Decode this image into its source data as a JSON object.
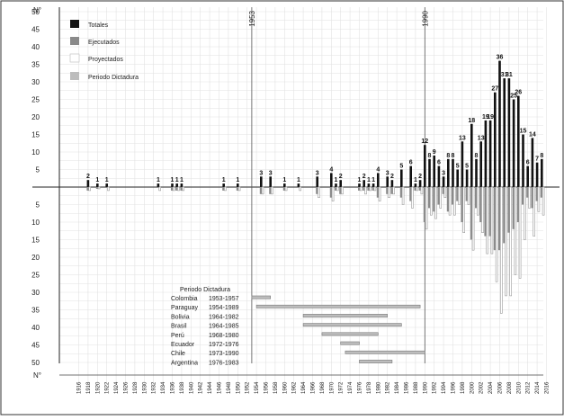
{
  "chart_data": {
    "type": "bar",
    "ylabel_top": "N°",
    "ylabel_bottom": "N°",
    "y_ticks_up": [
      5,
      10,
      15,
      20,
      25,
      30,
      35,
      40,
      45,
      50
    ],
    "y_ticks_down": [
      5,
      10,
      15,
      20,
      25,
      30,
      35,
      40,
      45,
      50
    ],
    "xlim": [
      1916,
      2016
    ],
    "x_tick_labels": [
      "1916",
      "1918",
      "1920",
      "1922",
      "1924",
      "1926",
      "1928",
      "1930",
      "1932",
      "1934",
      "1936",
      "1938",
      "1940",
      "1942",
      "1944",
      "1946",
      "1948",
      "1950",
      "1952",
      "1954",
      "1956",
      "1958",
      "1960",
      "1962",
      "1964",
      "1966",
      "1968",
      "1970",
      "1972",
      "1974",
      "1976",
      "1978",
      "1980",
      "1982",
      "1984",
      "1986",
      "1988",
      "1990",
      "1992",
      "1994",
      "1996",
      "1998",
      "2000",
      "2002",
      "2004",
      "2006",
      "2008",
      "2010",
      "2012",
      "2014",
      "2016"
    ],
    "legend": [
      {
        "name": "Totales",
        "color": "#111111"
      },
      {
        "name": "Ejecutados",
        "color": "#8a8a8a"
      },
      {
        "name": "Proyectados",
        "color": "#ffffff"
      },
      {
        "name": "Periodo Dictadura",
        "color": "#bdbdbd"
      }
    ],
    "annotations": [
      {
        "label": "1953",
        "x": 1953
      },
      {
        "label": "1990",
        "x": 1990
      }
    ],
    "totals": [
      {
        "year": 1918,
        "value": 2,
        "label": "2"
      },
      {
        "year": 1920,
        "value": 1,
        "label": "1"
      },
      {
        "year": 1922,
        "value": 1,
        "label": "1"
      },
      {
        "year": 1933,
        "value": 1,
        "label": "1"
      },
      {
        "year": 1936,
        "value": 1,
        "label": "1"
      },
      {
        "year": 1937,
        "value": 1,
        "label": "1"
      },
      {
        "year": 1938,
        "value": 1,
        "label": "1"
      },
      {
        "year": 1947,
        "value": 1,
        "label": "1"
      },
      {
        "year": 1950,
        "value": 1,
        "label": "1"
      },
      {
        "year": 1955,
        "value": 3,
        "label": "3"
      },
      {
        "year": 1957,
        "value": 3,
        "label": "3"
      },
      {
        "year": 1960,
        "value": 1,
        "label": "1"
      },
      {
        "year": 1963,
        "value": 1,
        "label": "1"
      },
      {
        "year": 1967,
        "value": 3,
        "label": "3"
      },
      {
        "year": 1970,
        "value": 4,
        "label": "4"
      },
      {
        "year": 1971,
        "value": 1,
        "label": "1"
      },
      {
        "year": 1972,
        "value": 2,
        "label": "2"
      },
      {
        "year": 1976,
        "value": 1,
        "label": "1"
      },
      {
        "year": 1977,
        "value": 2,
        "label": "2"
      },
      {
        "year": 1978,
        "value": 1,
        "label": "1"
      },
      {
        "year": 1979,
        "value": 1,
        "label": "1"
      },
      {
        "year": 1980,
        "value": 4,
        "label": "4"
      },
      {
        "year": 1982,
        "value": 3,
        "label": "3"
      },
      {
        "year": 1983,
        "value": 2,
        "label": "2"
      },
      {
        "year": 1985,
        "value": 5,
        "label": "5"
      },
      {
        "year": 1987,
        "value": 6,
        "label": "6"
      },
      {
        "year": 1988,
        "value": 1,
        "label": "1"
      },
      {
        "year": 1989,
        "value": 2,
        "label": "2"
      },
      {
        "year": 1990,
        "value": 12,
        "label": "12"
      },
      {
        "year": 1991,
        "value": 8,
        "label": "8"
      },
      {
        "year": 1992,
        "value": 9,
        "label": "9"
      },
      {
        "year": 1993,
        "value": 6,
        "label": "6"
      },
      {
        "year": 1994,
        "value": 3,
        "label": "3"
      },
      {
        "year": 1995,
        "value": 8,
        "label": "8"
      },
      {
        "year": 1996,
        "value": 8,
        "label": "8"
      },
      {
        "year": 1997,
        "value": 5,
        "label": "5"
      },
      {
        "year": 1998,
        "value": 13,
        "label": "13"
      },
      {
        "year": 1999,
        "value": 5,
        "label": "5"
      },
      {
        "year": 2000,
        "value": 18,
        "label": "18"
      },
      {
        "year": 2001,
        "value": 8,
        "label": "8"
      },
      {
        "year": 2002,
        "value": 13,
        "label": "13"
      },
      {
        "year": 2003,
        "value": 19,
        "label": "19"
      },
      {
        "year": 2004,
        "value": 19,
        "label": "19"
      },
      {
        "year": 2005,
        "value": 27,
        "label": "27"
      },
      {
        "year": 2006,
        "value": 36,
        "label": "36"
      },
      {
        "year": 2007,
        "value": 31,
        "label": "31"
      },
      {
        "year": 2008,
        "value": 31,
        "label": "31"
      },
      {
        "year": 2009,
        "value": 25,
        "label": "25"
      },
      {
        "year": 2010,
        "value": 26,
        "label": "26"
      },
      {
        "year": 2011,
        "value": 15,
        "label": "15"
      },
      {
        "year": 2012,
        "value": 6,
        "label": "6"
      },
      {
        "year": 2013,
        "value": 14,
        "label": "14"
      },
      {
        "year": 2014,
        "value": 7,
        "label": "7"
      },
      {
        "year": 2015,
        "value": 8,
        "label": "8"
      }
    ],
    "below": [
      {
        "year": 1918,
        "exec": 1,
        "proj": 1
      },
      {
        "year": 1920,
        "exec": 0.5,
        "proj": 0.5
      },
      {
        "year": 1922,
        "exec": 0,
        "proj": 1
      },
      {
        "year": 1933,
        "exec": 0,
        "proj": 1
      },
      {
        "year": 1936,
        "exec": 1,
        "proj": 1
      },
      {
        "year": 1937,
        "exec": 1,
        "proj": 1
      },
      {
        "year": 1938,
        "exec": 1,
        "proj": 1
      },
      {
        "year": 1947,
        "exec": 1,
        "proj": 1
      },
      {
        "year": 1950,
        "exec": 1,
        "proj": 1
      },
      {
        "year": 1955,
        "exec": 2,
        "proj": 2
      },
      {
        "year": 1957,
        "exec": 2,
        "proj": 2
      },
      {
        "year": 1960,
        "exec": 1,
        "proj": 1
      },
      {
        "year": 1963,
        "exec": 0,
        "proj": 1
      },
      {
        "year": 1967,
        "exec": 2,
        "proj": 3
      },
      {
        "year": 1970,
        "exec": 3,
        "proj": 4
      },
      {
        "year": 1971,
        "exec": 1,
        "proj": 1
      },
      {
        "year": 1972,
        "exec": 2,
        "proj": 2
      },
      {
        "year": 1976,
        "exec": 1,
        "proj": 1
      },
      {
        "year": 1977,
        "exec": 1,
        "proj": 2
      },
      {
        "year": 1978,
        "exec": 1,
        "proj": 1
      },
      {
        "year": 1979,
        "exec": 1,
        "proj": 1
      },
      {
        "year": 1980,
        "exec": 3,
        "proj": 4
      },
      {
        "year": 1982,
        "exec": 2,
        "proj": 3
      },
      {
        "year": 1983,
        "exec": 2,
        "proj": 2
      },
      {
        "year": 1985,
        "exec": 3,
        "proj": 5
      },
      {
        "year": 1987,
        "exec": 4,
        "proj": 6
      },
      {
        "year": 1988,
        "exec": 1,
        "proj": 1
      },
      {
        "year": 1989,
        "exec": 1,
        "proj": 2
      },
      {
        "year": 1990,
        "exec": 10,
        "proj": 12
      },
      {
        "year": 1991,
        "exec": 6,
        "proj": 8
      },
      {
        "year": 1992,
        "exec": 7,
        "proj": 9
      },
      {
        "year": 1993,
        "exec": 5,
        "proj": 6
      },
      {
        "year": 1994,
        "exec": 2,
        "proj": 3
      },
      {
        "year": 1995,
        "exec": 7,
        "proj": 8
      },
      {
        "year": 1996,
        "exec": 5,
        "proj": 8
      },
      {
        "year": 1997,
        "exec": 4,
        "proj": 5
      },
      {
        "year": 1998,
        "exec": 10,
        "proj": 13
      },
      {
        "year": 1999,
        "exec": 4,
        "proj": 5
      },
      {
        "year": 2000,
        "exec": 15,
        "proj": 18
      },
      {
        "year": 2001,
        "exec": 6,
        "proj": 8
      },
      {
        "year": 2002,
        "exec": 10,
        "proj": 13
      },
      {
        "year": 2003,
        "exec": 14,
        "proj": 19
      },
      {
        "year": 2004,
        "exec": 14,
        "proj": 19
      },
      {
        "year": 2005,
        "exec": 18,
        "proj": 27
      },
      {
        "year": 2006,
        "exec": 18,
        "proj": 36
      },
      {
        "year": 2007,
        "exec": 16,
        "proj": 31
      },
      {
        "year": 2008,
        "exec": 13,
        "proj": 31
      },
      {
        "year": 2009,
        "exec": 12,
        "proj": 25
      },
      {
        "year": 2010,
        "exec": 10,
        "proj": 26
      },
      {
        "year": 2011,
        "exec": 5,
        "proj": 15
      },
      {
        "year": 2012,
        "exec": 3,
        "proj": 6
      },
      {
        "year": 2013,
        "exec": 6,
        "proj": 14
      },
      {
        "year": 2014,
        "exec": 4,
        "proj": 7
      },
      {
        "year": 2015,
        "exec": 3,
        "proj": 8
      }
    ],
    "dictatorship_table": {
      "title": "Periodo Dictadura",
      "rows": [
        {
          "country": "Colombia",
          "period": "1953-1957",
          "start": 1953,
          "end": 1957
        },
        {
          "country": "Paraguay",
          "period": "1954-1989",
          "start": 1954,
          "end": 1989
        },
        {
          "country": "Bolivia",
          "period": "1964-1982",
          "start": 1964,
          "end": 1982
        },
        {
          "country": "Brasil",
          "period": "1964-1985",
          "start": 1964,
          "end": 1985
        },
        {
          "country": "Perú",
          "period": "1968-1980",
          "start": 1968,
          "end": 1980
        },
        {
          "country": "Ecuador",
          "period": "1972-1976",
          "start": 1972,
          "end": 1976
        },
        {
          "country": "Chile",
          "period": "1973-1990",
          "start": 1973,
          "end": 1990
        },
        {
          "country": "Argentina",
          "period": "1976-1983",
          "start": 1976,
          "end": 1983
        }
      ]
    }
  }
}
